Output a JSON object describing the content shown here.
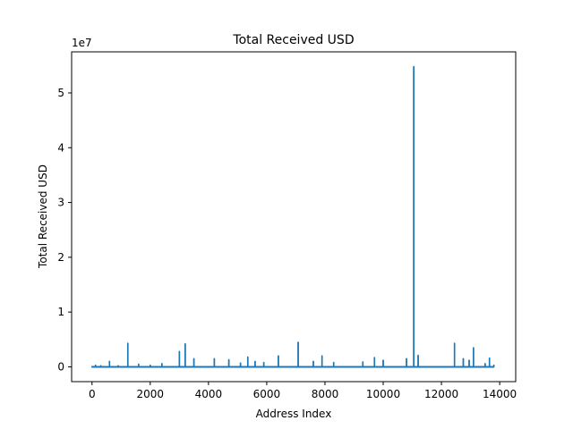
{
  "chart_data": {
    "type": "line",
    "title": "Total Received USD",
    "xlabel": "Address Index",
    "ylabel": "Total Received USD",
    "offset_label": "1e7",
    "xlim": [
      -700,
      14550
    ],
    "ylim": [
      -2700000,
      57500000
    ],
    "x_ticks": [
      0,
      2000,
      4000,
      6000,
      8000,
      10000,
      12000,
      14000
    ],
    "x_tick_labels": [
      "0",
      "2000",
      "4000",
      "6000",
      "8000",
      "10000",
      "12000",
      "14000"
    ],
    "y_ticks": [
      0,
      10000000,
      20000000,
      30000000,
      40000000,
      50000000
    ],
    "y_tick_labels": [
      "0",
      "1",
      "2",
      "3",
      "4",
      "5"
    ],
    "grid": false,
    "line_color": "#1f77b4",
    "series": [
      {
        "values": [
          [
            0,
            50000
          ],
          [
            120,
            300000
          ],
          [
            300,
            200000
          ],
          [
            600,
            1000000
          ],
          [
            900,
            200000
          ],
          [
            1230,
            4300000
          ],
          [
            1600,
            500000
          ],
          [
            2000,
            300000
          ],
          [
            2400,
            600000
          ],
          [
            3000,
            2800000
          ],
          [
            3200,
            4200000
          ],
          [
            3500,
            1500000
          ],
          [
            4200,
            1500000
          ],
          [
            4700,
            1300000
          ],
          [
            5100,
            700000
          ],
          [
            5350,
            1800000
          ],
          [
            5600,
            1000000
          ],
          [
            5900,
            800000
          ],
          [
            6400,
            2000000
          ],
          [
            7080,
            4500000
          ],
          [
            7600,
            1000000
          ],
          [
            7900,
            2000000
          ],
          [
            8300,
            800000
          ],
          [
            9300,
            900000
          ],
          [
            9700,
            1700000
          ],
          [
            10000,
            1200000
          ],
          [
            10800,
            1500000
          ],
          [
            11050,
            54800000
          ],
          [
            11200,
            2100000
          ],
          [
            12450,
            4300000
          ],
          [
            12750,
            1500000
          ],
          [
            12950,
            1200000
          ],
          [
            13100,
            3500000
          ],
          [
            13500,
            600000
          ],
          [
            13650,
            1600000
          ],
          [
            13800,
            300000
          ]
        ]
      }
    ]
  }
}
